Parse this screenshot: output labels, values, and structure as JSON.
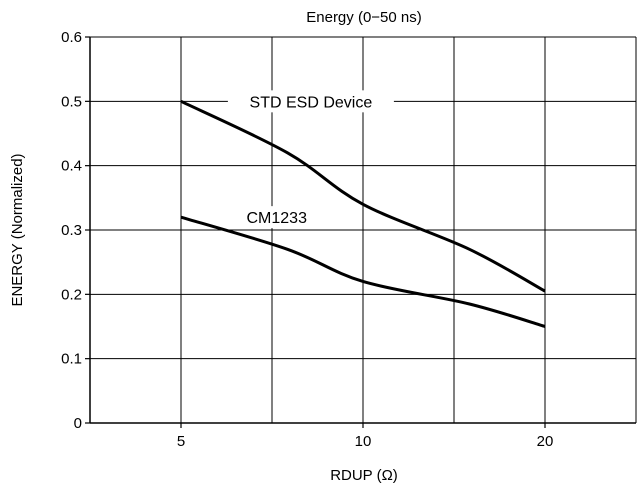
{
  "chart_data": {
    "type": "line",
    "title": "Energy (0−50 ns)",
    "xlabel": "RDUP (Ω)",
    "ylabel": "ENERGY (Normalized)",
    "x_ticks": [
      "5",
      "10",
      "20"
    ],
    "y_ticks": [
      "0",
      "0.1",
      "0.2",
      "0.3",
      "0.4",
      "0.5",
      "0.6"
    ],
    "ylim": [
      0,
      0.6
    ],
    "grid": true,
    "legend": "none",
    "series": [
      {
        "name": "STD ESD Device",
        "x": [
          5,
          7.5,
          10,
          15,
          20
        ],
        "y": [
          0.5,
          0.42,
          0.34,
          0.27,
          0.205
        ]
      },
      {
        "name": "CM1233",
        "x": [
          5,
          7.5,
          10,
          15,
          20
        ],
        "y": [
          0.32,
          0.27,
          0.22,
          0.185,
          0.15
        ]
      }
    ]
  }
}
